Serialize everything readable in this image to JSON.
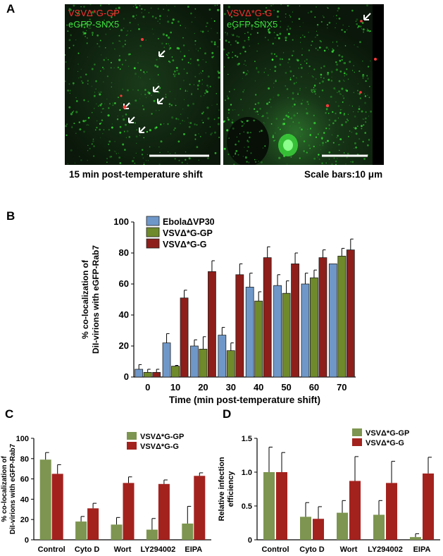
{
  "panel_letters": {
    "a": "A",
    "b": "B",
    "c": "C",
    "d": "D"
  },
  "panel_a": {
    "left_label_red": "VSVΔ*G-GP",
    "left_label_green": "eGFP-SNX5",
    "right_label_red": "VSVΔ*G-G",
    "right_label_green": "eGFP-SNX5",
    "caption_left": "15 min post-temperature shift",
    "caption_right": "Scale bars:10 μm"
  },
  "colors": {
    "ebola": "#6f98c9",
    "gp": "#6f8a2a",
    "g": "#8e1e1a",
    "gp_cd": "#7d9550",
    "g_cd": "#a3221e",
    "label_red": "#ff3030",
    "label_green": "#3ddc3d"
  },
  "chart_data": [
    {
      "panel": "B",
      "type": "bar",
      "xlabel": "Time (min post-temperature shift)",
      "ylabel_lines": [
        "% co-localization of",
        "DiI-virions with eGFP-Rab7"
      ],
      "ylim": [
        0,
        100
      ],
      "yticks": [
        0,
        20,
        40,
        60,
        80,
        100
      ],
      "categories": [
        "0",
        "10",
        "20",
        "30",
        "40",
        "50",
        "60",
        "70"
      ],
      "legend": "top-left",
      "series": [
        {
          "name": "EbolaΔVP30",
          "values": [
            5,
            22,
            20,
            27,
            58,
            59,
            60,
            73
          ],
          "errors": [
            3,
            6,
            4,
            5,
            9,
            7,
            7,
            0
          ]
        },
        {
          "name": "VSVΔ*G-GP",
          "values": [
            3,
            7,
            18,
            17,
            49,
            54,
            64,
            78
          ],
          "errors": [
            2,
            0.5,
            8,
            5,
            6,
            8,
            5,
            5
          ]
        },
        {
          "name": "VSVΔ*G-G",
          "values": [
            3,
            51,
            68,
            66,
            77,
            73,
            77,
            82
          ],
          "errors": [
            2,
            5,
            7,
            7,
            7,
            7,
            5,
            7
          ]
        }
      ]
    },
    {
      "panel": "C",
      "type": "bar",
      "ylabel_lines": [
        "% co-localization of",
        "DiI-virions with eGFP-Rab7"
      ],
      "ylim": [
        0,
        100
      ],
      "yticks": [
        0,
        20,
        40,
        60,
        80,
        100
      ],
      "categories": [
        "Control",
        "Cyto D",
        "Wort",
        "LY294002",
        "EIPA"
      ],
      "legend": "top-right",
      "series": [
        {
          "name": "VSVΔ*G-GP",
          "values": [
            79,
            18,
            15,
            10,
            16
          ],
          "errors": [
            7,
            5,
            7,
            11,
            17
          ]
        },
        {
          "name": "VSVΔ*G-G",
          "values": [
            65,
            31,
            56,
            55,
            63
          ],
          "errors": [
            9,
            5,
            6,
            4,
            3
          ]
        }
      ]
    },
    {
      "panel": "D",
      "type": "bar",
      "ylabel_lines": [
        "Relative infection",
        "efficiency"
      ],
      "ylim": [
        0,
        1.5
      ],
      "yticks": [
        0,
        0.5,
        1.0,
        1.5
      ],
      "ytick_labels": [
        "0",
        "0.5",
        "1.0",
        "1.5"
      ],
      "categories": [
        "Control",
        "Cyto D",
        "Wort",
        "LY294002",
        "EIPA"
      ],
      "legend": "top-right",
      "series": [
        {
          "name": "VSVΔ*G-GP",
          "values": [
            1.0,
            0.34,
            0.4,
            0.37,
            0.04
          ],
          "errors": [
            0.37,
            0.21,
            0.18,
            0.21,
            0.05
          ]
        },
        {
          "name": "VSVΔ*G-G",
          "values": [
            1.0,
            0.31,
            0.87,
            0.84,
            0.98
          ],
          "errors": [
            0.29,
            0.18,
            0.36,
            0.32,
            0.24
          ]
        }
      ]
    }
  ]
}
